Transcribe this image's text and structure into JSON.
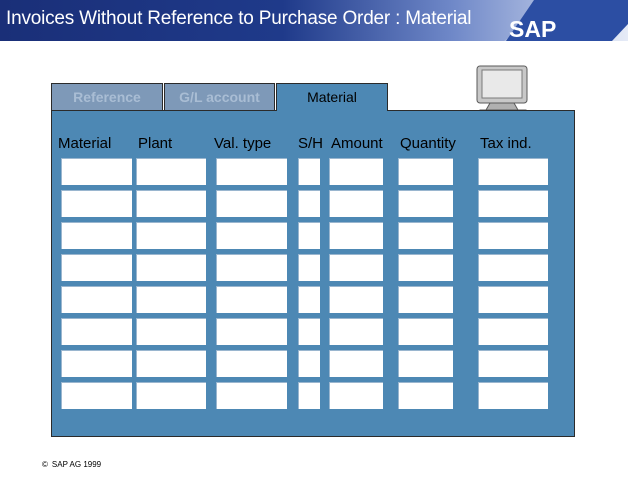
{
  "header": {
    "title": "Invoices Without Reference to Purchase Order : Material",
    "logo_text": "SAP"
  },
  "tabs": [
    {
      "label": "Reference",
      "active": false
    },
    {
      "label": "G/L account",
      "active": false
    },
    {
      "label": "Material",
      "active": true
    }
  ],
  "icons": {
    "monitor": "monitor-icon"
  },
  "table": {
    "columns": [
      "Material",
      "Plant",
      "Val. type",
      "S/H",
      "Amount",
      "Quantity",
      "Tax ind."
    ],
    "row_count": 8
  },
  "footer": {
    "copyright_symbol": "©",
    "text": "SAP AG 1999"
  },
  "colors": {
    "title_bar": "#1f3a8a",
    "panel": "#4d88b4",
    "tab_inactive": "#7e99b8",
    "field": "#ffffff"
  }
}
